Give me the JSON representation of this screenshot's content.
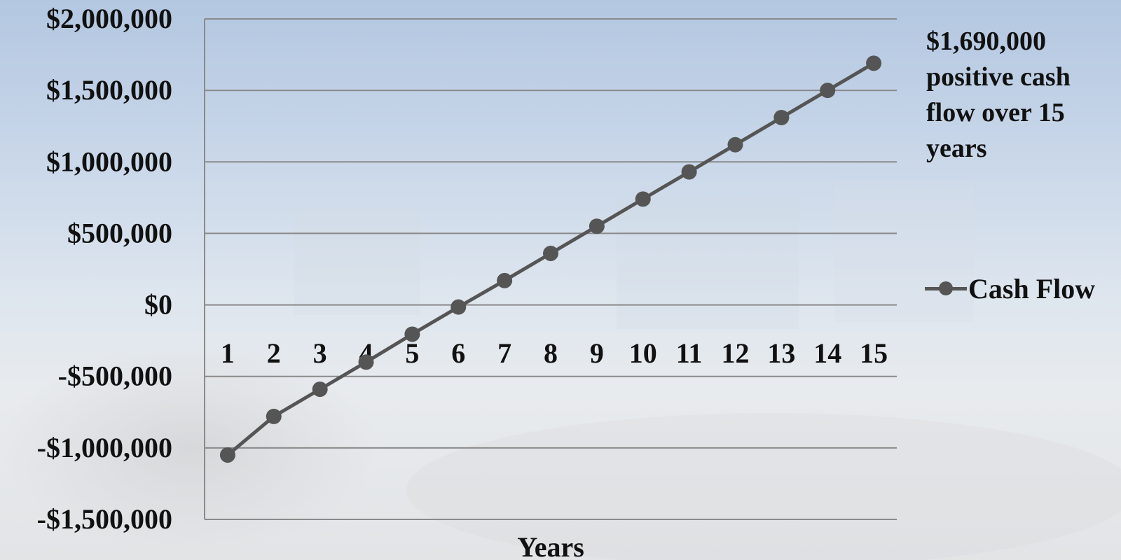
{
  "chart_data": {
    "type": "line",
    "x": [
      1,
      2,
      3,
      4,
      5,
      6,
      7,
      8,
      9,
      10,
      11,
      12,
      13,
      14,
      15
    ],
    "series": [
      {
        "name": "Cash Flow",
        "values": [
          -1050000,
          -780000,
          -590000,
          -400000,
          -205000,
          -15000,
          170000,
          360000,
          550000,
          740000,
          930000,
          1120000,
          1310000,
          1500000,
          1690000
        ]
      }
    ],
    "title": "",
    "xlabel": "Years",
    "ylabel": "",
    "ylim": [
      -1500000,
      2000000
    ],
    "y_ticks": [
      2000000,
      1500000,
      1000000,
      500000,
      0,
      -500000,
      -1000000,
      -1500000
    ],
    "y_tick_labels": [
      "$2,000,000",
      "$1,500,000",
      "$1,000,000",
      "$500,000",
      "$0",
      "-$500,000",
      "-$1,000,000",
      "-$1,500,000"
    ],
    "x_tick_labels": [
      "1",
      "2",
      "3",
      "4",
      "5",
      "6",
      "7",
      "8",
      "9",
      "10",
      "11",
      "12",
      "13",
      "14",
      "15"
    ],
    "grid": true,
    "legend_position": "right",
    "annotation": "$1,690,000\npositive cash\nflow over 15\nyears",
    "colors": {
      "line": "#555555",
      "marker": "#555555",
      "grid": "#8a8a8a",
      "text": "#111111"
    }
  }
}
